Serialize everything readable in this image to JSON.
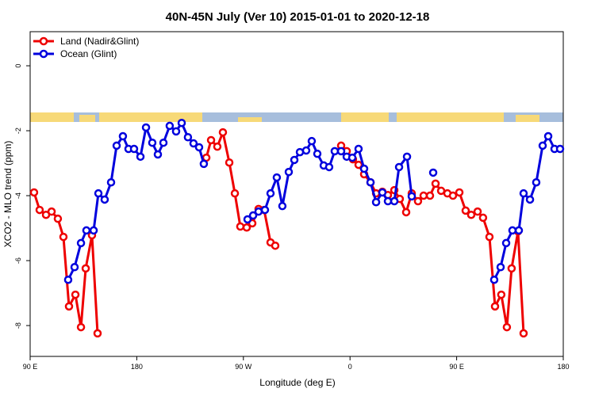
{
  "chart_data": {
    "type": "line",
    "title": "40N-45N July (Ver 10)   2015-01-01 to 2020-12-18",
    "x_label": "Longitude (deg E)",
    "y_label": "XCO2 - MLO trend (ppm)",
    "xlim": [
      90,
      540
    ],
    "ylim": [
      -8.95,
      1.05
    ],
    "xticks": [
      {
        "value": 90,
        "label": "90 E"
      },
      180,
      {
        "value": 270,
        "label": "90 W"
      },
      {
        "value": 360,
        "label": "0"
      },
      {
        "value": 450,
        "label": "90 E"
      },
      {
        "value": 540,
        "label": "180"
      }
    ],
    "yticks": [
      0,
      -2,
      -4,
      -6,
      -8
    ],
    "legend": "top-left",
    "series": [
      {
        "name": "Land (Nadir&Glint)",
        "color": "#ee0000",
        "x": [
          93.3,
          98.0,
          103.4,
          108.1,
          113.4,
          118.1,
          122.8,
          128.2,
          132.9,
          136.9,
          142.2,
          146.9,
          null,
          238.7,
          242.7,
          248.0,
          252.7,
          258.1,
          262.8,
          267.4,
          272.8,
          277.5,
          282.8,
          287.5,
          292.9,
          296.9,
          null,
          352.5,
          357.2,
          362.5,
          367.2,
          371.9,
          377.3,
          382.0,
          387.3,
          392.0,
          397.4,
          402.0,
          407.4,
          412.1,
          417.4,
          422.1,
          427.5,
          432.2,
          436.9,
          442.2,
          446.9,
          452.3,
          457.6,
          462.3,
          467.7,
          472.3,
          477.7,
          482.4,
          487.7,
          492.4,
          496.4,
          501.8,
          506.5
        ],
        "values": [
          -3.9,
          -4.44,
          -4.59,
          -4.49,
          -4.71,
          -5.27,
          -7.41,
          -7.05,
          -8.05,
          -6.24,
          -5.22,
          -8.24,
          null,
          -2.83,
          -2.29,
          -2.49,
          -2.05,
          -2.98,
          -3.93,
          -4.95,
          -4.98,
          -4.85,
          -4.41,
          -4.44,
          -5.44,
          -5.54,
          null,
          -2.46,
          -2.63,
          -2.88,
          -3.05,
          -3.34,
          -3.59,
          -3.93,
          -3.88,
          -3.98,
          -3.83,
          -4.1,
          -4.51,
          -3.93,
          -4.17,
          -4.0,
          -4.0,
          -3.63,
          -3.85,
          -3.93,
          -4.0,
          -3.9,
          -4.46,
          -4.59,
          -4.49,
          -4.68,
          -5.27,
          -7.41,
          -7.05,
          -8.05,
          -6.24,
          -5.1,
          -8.24
        ]
      },
      {
        "name": "Ocean (Glint)",
        "color": "#0000dd",
        "x": [
          122.1,
          127.5,
          132.9,
          137.5,
          143.6,
          147.6,
          152.9,
          158.3,
          163.0,
          168.3,
          173.0,
          177.7,
          183.1,
          187.8,
          193.1,
          197.8,
          202.5,
          207.8,
          213.2,
          217.9,
          223.2,
          227.9,
          232.6,
          236.6,
          null,
          273.5,
          278.2,
          282.8,
          288.2,
          292.9,
          298.2,
          302.9,
          308.3,
          313.0,
          317.7,
          323.0,
          327.7,
          332.4,
          337.8,
          342.4,
          347.1,
          352.5,
          357.2,
          361.9,
          367.2,
          371.9,
          377.3,
          382.0,
          387.3,
          392.0,
          397.4,
          401.4,
          408.1,
          412.1,
          null,
          430.2,
          null,
          481.7,
          487.1,
          491.8,
          497.1,
          502.5,
          506.5,
          511.9,
          517.2,
          522.6,
          527.3,
          532.6,
          537.3
        ],
        "values": [
          -6.59,
          -6.2,
          -5.46,
          -5.07,
          -5.07,
          -3.93,
          -4.12,
          -3.59,
          -2.46,
          -2.17,
          -2.56,
          -2.56,
          -2.8,
          -1.9,
          -2.37,
          -2.73,
          -2.37,
          -1.85,
          -2.02,
          -1.76,
          -2.2,
          -2.39,
          -2.51,
          -3.02,
          null,
          -4.73,
          -4.61,
          -4.49,
          -4.44,
          -3.93,
          -3.44,
          -4.32,
          -3.27,
          -2.9,
          -2.66,
          -2.61,
          -2.32,
          -2.71,
          -3.07,
          -3.12,
          -2.63,
          -2.63,
          -2.8,
          -2.83,
          -2.56,
          -3.17,
          -3.59,
          -4.2,
          -3.9,
          -4.17,
          -4.17,
          -3.12,
          -2.8,
          -4.02,
          null,
          -3.29,
          null,
          -6.59,
          -6.2,
          -5.46,
          -5.07,
          -5.07,
          -3.93,
          -4.12,
          -3.59,
          -2.46,
          -2.17,
          -2.56,
          -2.56
        ]
      }
    ]
  }
}
